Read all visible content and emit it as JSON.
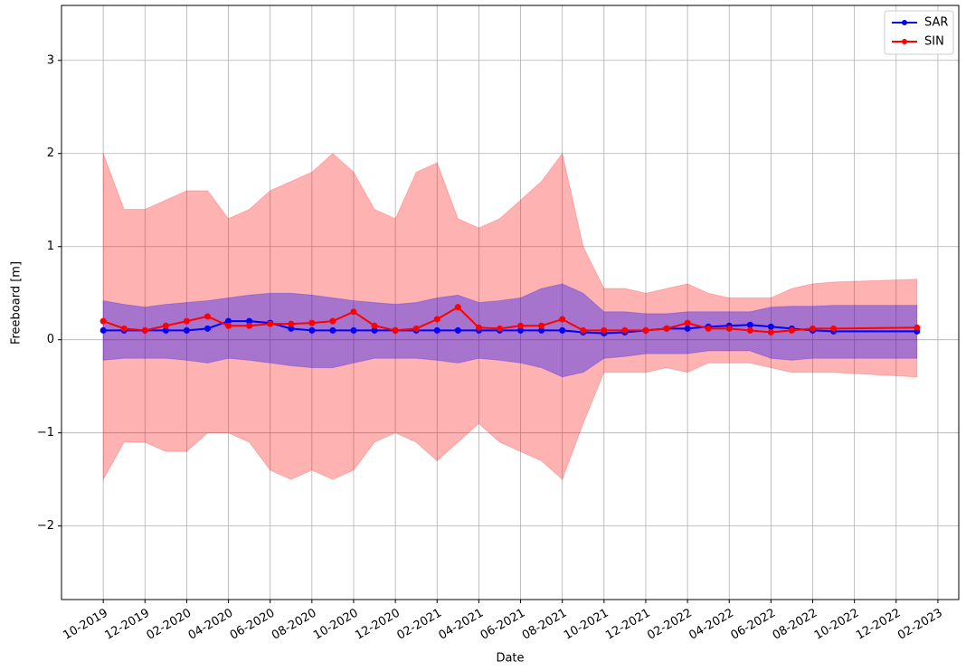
{
  "chart_data": {
    "type": "line",
    "xlabel": "Date",
    "ylabel": "Freeboard [m]",
    "x": [
      "2019-10",
      "2019-11",
      "2019-12",
      "2020-01",
      "2020-02",
      "2020-03",
      "2020-04",
      "2020-05",
      "2020-06",
      "2020-07",
      "2020-08",
      "2020-09",
      "2020-10",
      "2020-11",
      "2020-12",
      "2021-01",
      "2021-02",
      "2021-03",
      "2021-04",
      "2021-05",
      "2021-06",
      "2021-07",
      "2021-08",
      "2021-09",
      "2021-10",
      "2021-11",
      "2021-12",
      "2022-01",
      "2022-02",
      "2022-03",
      "2022-04",
      "2022-05",
      "2022-06",
      "2022-07",
      "2022-08",
      "2022-09",
      "2023-01"
    ],
    "series": [
      {
        "name": "SAR",
        "color": "#0000ff",
        "values": [
          0.1,
          0.1,
          0.1,
          0.1,
          0.1,
          0.12,
          0.2,
          0.2,
          0.18,
          0.12,
          0.1,
          0.1,
          0.1,
          0.1,
          0.1,
          0.1,
          0.1,
          0.1,
          0.1,
          0.1,
          0.1,
          0.1,
          0.1,
          0.08,
          0.07,
          0.08,
          0.1,
          0.12,
          0.12,
          0.14,
          0.15,
          0.16,
          0.14,
          0.12,
          0.1,
          0.09,
          0.09
        ],
        "low": [
          -0.22,
          -0.2,
          -0.2,
          -0.2,
          -0.22,
          -0.25,
          -0.2,
          -0.22,
          -0.25,
          -0.28,
          -0.3,
          -0.3,
          -0.25,
          -0.2,
          -0.2,
          -0.2,
          -0.22,
          -0.25,
          -0.2,
          -0.22,
          -0.25,
          -0.3,
          -0.4,
          -0.35,
          -0.2,
          -0.18,
          -0.15,
          -0.15,
          -0.15,
          -0.12,
          -0.12,
          -0.12,
          -0.2,
          -0.22,
          -0.2,
          -0.2,
          -0.2
        ],
        "high": [
          0.42,
          0.38,
          0.35,
          0.38,
          0.4,
          0.42,
          0.45,
          0.48,
          0.5,
          0.5,
          0.48,
          0.45,
          0.42,
          0.4,
          0.38,
          0.4,
          0.45,
          0.48,
          0.4,
          0.42,
          0.45,
          0.55,
          0.6,
          0.5,
          0.3,
          0.3,
          0.28,
          0.28,
          0.3,
          0.3,
          0.3,
          0.3,
          0.35,
          0.36,
          0.36,
          0.37,
          0.37
        ]
      },
      {
        "name": "SIN",
        "color": "#ff0000",
        "values": [
          0.2,
          0.12,
          0.1,
          0.15,
          0.2,
          0.25,
          0.15,
          0.15,
          0.17,
          0.17,
          0.18,
          0.2,
          0.3,
          0.15,
          0.1,
          0.12,
          0.22,
          0.35,
          0.13,
          0.12,
          0.15,
          0.15,
          0.22,
          0.1,
          0.1,
          0.1,
          0.1,
          0.12,
          0.18,
          0.12,
          0.12,
          0.1,
          0.08,
          0.1,
          0.12,
          0.12,
          0.13
        ],
        "low": [
          -1.5,
          -1.1,
          -1.1,
          -1.2,
          -1.2,
          -1.0,
          -1.0,
          -1.1,
          -1.4,
          -1.5,
          -1.4,
          -1.5,
          -1.4,
          -1.1,
          -1.0,
          -1.1,
          -1.3,
          -1.1,
          -0.9,
          -1.1,
          -1.2,
          -1.3,
          -1.5,
          -0.9,
          -0.35,
          -0.35,
          -0.35,
          -0.3,
          -0.35,
          -0.25,
          -0.25,
          -0.25,
          -0.3,
          -0.35,
          -0.35,
          -0.35,
          -0.4
        ],
        "high": [
          2.0,
          1.4,
          1.4,
          1.5,
          1.6,
          1.6,
          1.3,
          1.4,
          1.6,
          1.7,
          1.8,
          2.0,
          1.8,
          1.4,
          1.3,
          1.8,
          1.9,
          1.3,
          1.2,
          1.3,
          1.5,
          1.7,
          2.0,
          1.0,
          0.55,
          0.55,
          0.5,
          0.55,
          0.6,
          0.5,
          0.45,
          0.45,
          0.45,
          0.55,
          0.6,
          0.62,
          0.65
        ]
      }
    ],
    "xlim": [
      "2019-08",
      "2023-03"
    ],
    "xticks": [
      {
        "value": "2019-10",
        "label": "10-2019"
      },
      {
        "value": "2019-12",
        "label": "12-2019"
      },
      {
        "value": "2020-02",
        "label": "02-2020"
      },
      {
        "value": "2020-04",
        "label": "04-2020"
      },
      {
        "value": "2020-06",
        "label": "06-2020"
      },
      {
        "value": "2020-08",
        "label": "08-2020"
      },
      {
        "value": "2020-10",
        "label": "10-2020"
      },
      {
        "value": "2020-12",
        "label": "12-2020"
      },
      {
        "value": "2021-02",
        "label": "02-2021"
      },
      {
        "value": "2021-04",
        "label": "04-2021"
      },
      {
        "value": "2021-06",
        "label": "06-2021"
      },
      {
        "value": "2021-08",
        "label": "08-2021"
      },
      {
        "value": "2021-10",
        "label": "10-2021"
      },
      {
        "value": "2021-12",
        "label": "12-2021"
      },
      {
        "value": "2022-02",
        "label": "02-2022"
      },
      {
        "value": "2022-04",
        "label": "04-2022"
      },
      {
        "value": "2022-06",
        "label": "06-2022"
      },
      {
        "value": "2022-08",
        "label": "08-2022"
      },
      {
        "value": "2022-10",
        "label": "10-2022"
      },
      {
        "value": "2022-12",
        "label": "12-2022"
      },
      {
        "value": "2023-02",
        "label": "02-2023"
      }
    ],
    "ylim": [
      -2.79,
      3.59
    ],
    "yticks": [
      {
        "value": -2,
        "label": "−2"
      },
      {
        "value": -1,
        "label": "−1"
      },
      0,
      1,
      2,
      3
    ],
    "grid": true,
    "legend": "upper right"
  }
}
